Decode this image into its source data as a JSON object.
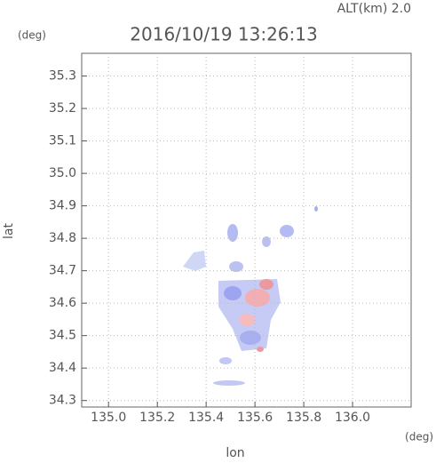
{
  "chart_data": {
    "type": "map",
    "title": "2016/10/19 13:26:13",
    "annotation": "ALT(km)  2.0",
    "xlabel": "lon",
    "ylabel": "lat",
    "xunit": "(deg)",
    "yunit": "(deg)",
    "xlim": [
      134.89,
      136.24
    ],
    "ylim": [
      34.28,
      35.37
    ],
    "xticks": [
      {
        "value": 135,
        "label": "135.0"
      },
      135.2,
      135.4,
      135.6,
      135.8,
      {
        "value": 136,
        "label": "136.0"
      }
    ],
    "yticks": [
      34.3,
      34.4,
      34.5,
      34.6,
      34.7,
      34.8,
      34.9,
      {
        "value": 35,
        "label": "35.0"
      },
      35.1,
      35.2,
      35.3
    ],
    "grid": true
  }
}
